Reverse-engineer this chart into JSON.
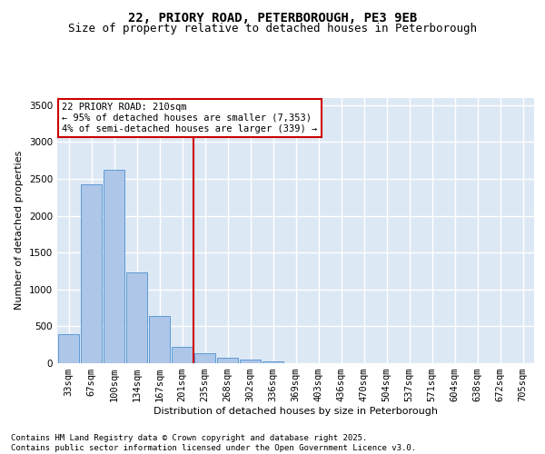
{
  "title": "22, PRIORY ROAD, PETERBOROUGH, PE3 9EB",
  "subtitle": "Size of property relative to detached houses in Peterborough",
  "xlabel": "Distribution of detached houses by size in Peterborough",
  "ylabel": "Number of detached properties",
  "categories": [
    "33sqm",
    "67sqm",
    "100sqm",
    "134sqm",
    "167sqm",
    "201sqm",
    "235sqm",
    "268sqm",
    "302sqm",
    "336sqm",
    "369sqm",
    "403sqm",
    "436sqm",
    "470sqm",
    "504sqm",
    "537sqm",
    "571sqm",
    "604sqm",
    "638sqm",
    "672sqm",
    "705sqm"
  ],
  "values": [
    390,
    2420,
    2620,
    1230,
    640,
    220,
    135,
    80,
    55,
    30,
    0,
    0,
    0,
    0,
    0,
    0,
    0,
    0,
    0,
    0,
    0
  ],
  "bar_color": "#aec6e8",
  "bar_edge_color": "#5b9bd5",
  "background_color": "#dde8f5",
  "grid_color": "#ffffff",
  "vline_x_index": 5.5,
  "vline_color": "#cc0000",
  "annotation_text": "22 PRIORY ROAD: 210sqm\n← 95% of detached houses are smaller (7,353)\n4% of semi-detached houses are larger (339) →",
  "annotation_box_color": "#ffffff",
  "annotation_box_edge": "#cc0000",
  "ylim": [
    0,
    3600
  ],
  "yticks": [
    0,
    500,
    1000,
    1500,
    2000,
    2500,
    3000,
    3500
  ],
  "footer_line1": "Contains HM Land Registry data © Crown copyright and database right 2025.",
  "footer_line2": "Contains public sector information licensed under the Open Government Licence v3.0.",
  "title_fontsize": 10,
  "subtitle_fontsize": 9,
  "axis_label_fontsize": 8,
  "tick_fontsize": 7.5,
  "footer_fontsize": 6.5,
  "annotation_fontsize": 7.5
}
